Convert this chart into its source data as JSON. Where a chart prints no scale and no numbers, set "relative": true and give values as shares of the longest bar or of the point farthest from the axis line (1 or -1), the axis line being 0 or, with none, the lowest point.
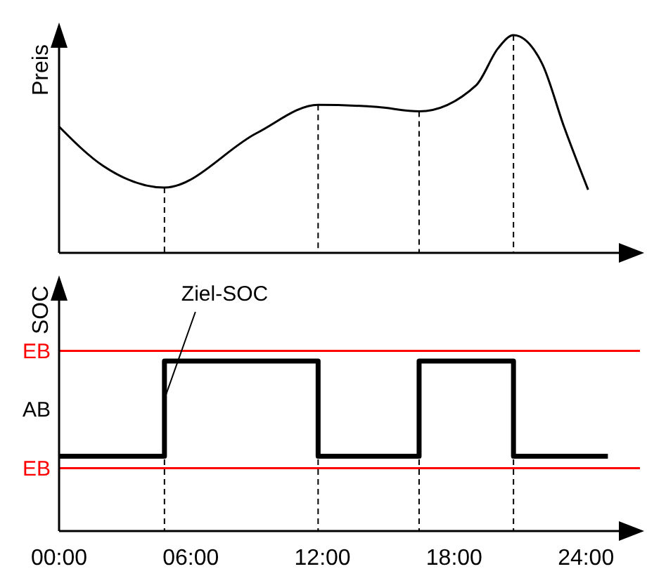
{
  "chart_data": [
    {
      "type": "line",
      "ylabel": "Preis",
      "relative": true,
      "color": "#000000",
      "tick_labels": false,
      "x": [
        0,
        2,
        4.8,
        9,
        11.8,
        14.5,
        16.4,
        19,
        20,
        20.7,
        22,
        23,
        24.1
      ],
      "values": [
        0.58,
        0.4,
        0.3,
        0.55,
        0.68,
        0.67,
        0.65,
        0.77,
        0.94,
        1,
        0.87,
        0.58,
        0.29
      ],
      "xlim": [
        0,
        25.5
      ],
      "ref_lines": [
        {
          "axis": "x",
          "value": 4.8,
          "line_style": "dashed"
        },
        {
          "axis": "x",
          "value": 11.8,
          "line_style": "dashed"
        },
        {
          "axis": "x",
          "value": 16.4,
          "line_style": "dashed"
        },
        {
          "axis": "x",
          "value": 20.7,
          "line_style": "dashed"
        }
      ]
    },
    {
      "type": "step",
      "ylabel": "SOC",
      "relative": true,
      "color": "#000000",
      "tick_labels": "x",
      "x": [
        0,
        4.8,
        11.8,
        16.4,
        20.7,
        25
      ],
      "values": [
        0.44,
        1,
        0.44,
        1,
        0.44,
        0.44
      ],
      "xlim": [
        0,
        25.5
      ],
      "xticks": [
        {
          "value": 0,
          "label": "00:00"
        },
        {
          "value": 6,
          "label": "06:00"
        },
        {
          "value": 12,
          "label": "12:00"
        },
        {
          "value": 18,
          "label": "18:00"
        },
        {
          "value": 24,
          "label": "24:00"
        }
      ],
      "ref_lines": [
        {
          "axis": "y",
          "value": 1.06,
          "label": "EB",
          "color": "#ff0000"
        },
        {
          "axis": "y",
          "value": 0.37,
          "label": "EB",
          "color": "#ff0000"
        },
        {
          "axis": "x",
          "value": 4.8,
          "line_style": "dashed"
        },
        {
          "axis": "x",
          "value": 11.8,
          "line_style": "dashed"
        },
        {
          "axis": "x",
          "value": 16.4,
          "line_style": "dashed"
        },
        {
          "axis": "x",
          "value": 20.7,
          "line_style": "dashed"
        }
      ],
      "annotations": [
        "AB",
        {
          "text": "Ziel-SOC",
          "x": 4.8,
          "y": 0.8
        }
      ]
    }
  ]
}
